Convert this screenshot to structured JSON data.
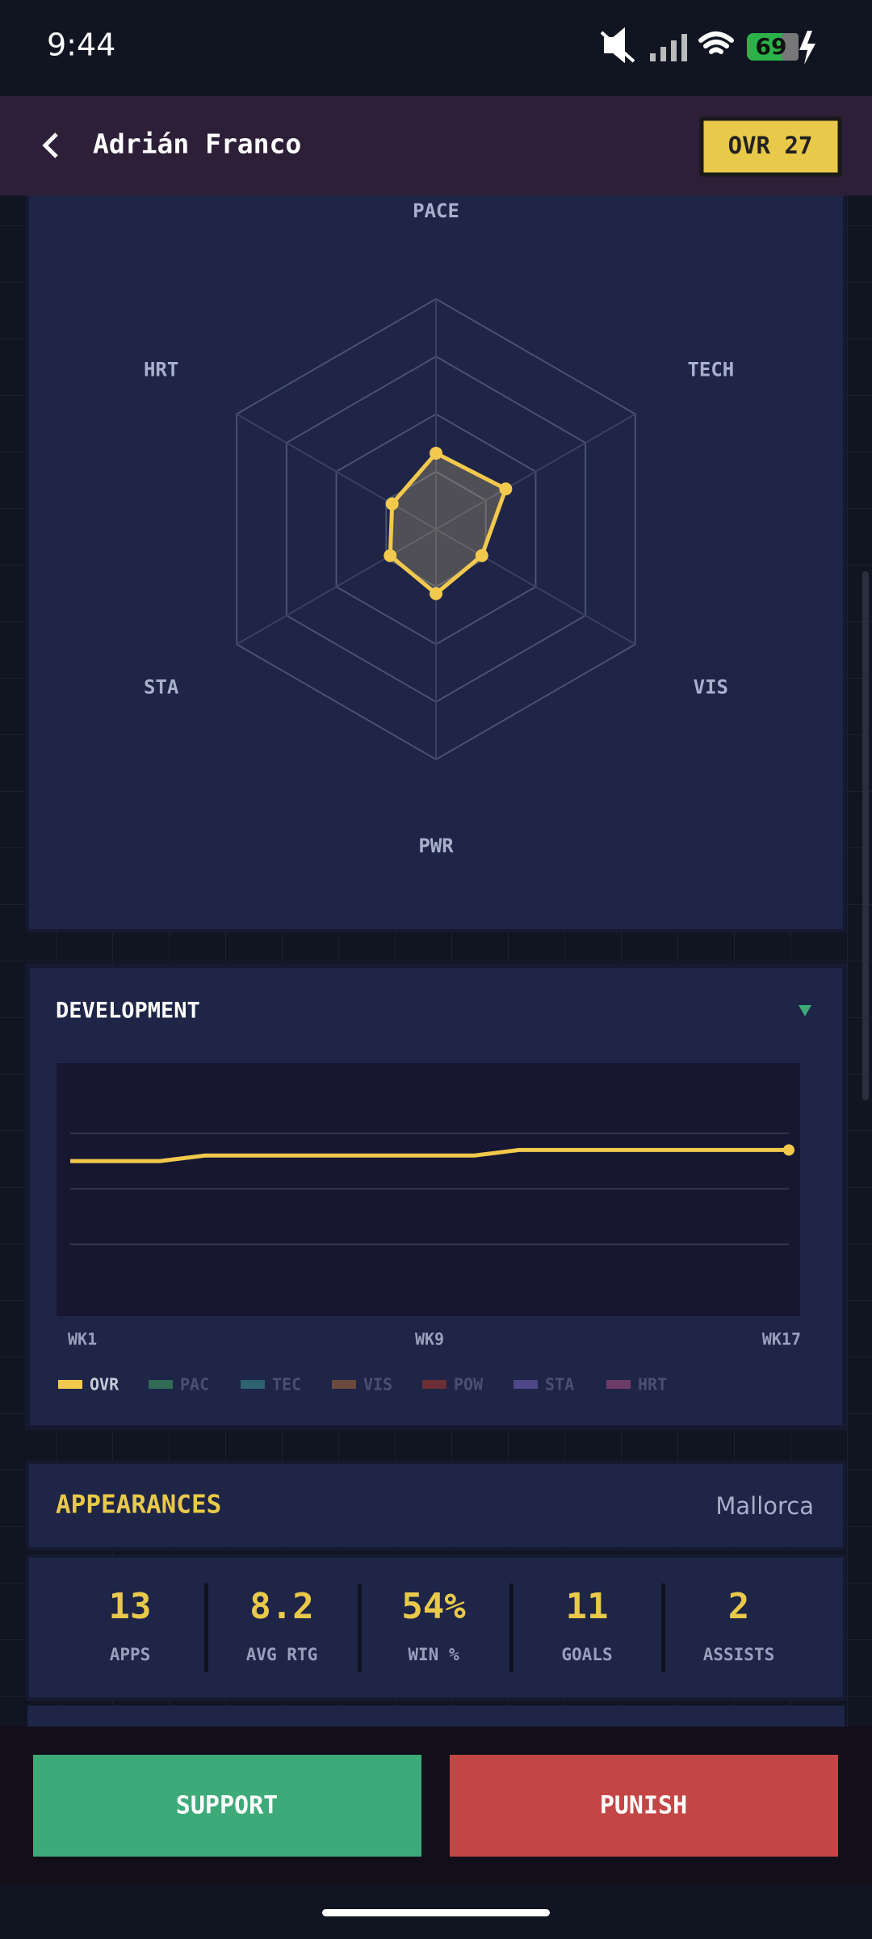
{
  "status_bar": {
    "time": "9:44",
    "battery": "69"
  },
  "header": {
    "title": "Adrián Franco",
    "badge": "OVR 27"
  },
  "radar": {
    "type": "radar",
    "axes": [
      "PACE",
      "TECH",
      "VIS",
      "PWR",
      "STA",
      "HRT"
    ],
    "values": [
      33,
      35,
      23,
      28,
      23,
      22
    ],
    "rlim": [
      0,
      100
    ],
    "rticks": [
      25,
      50,
      75,
      100
    ],
    "color": "#f2c94c"
  },
  "development": {
    "title": "DEVELOPMENT",
    "chart": {
      "type": "line",
      "categories": [
        "WK1",
        null,
        null,
        null,
        null,
        null,
        null,
        null,
        "WK9",
        null,
        null,
        null,
        null,
        null,
        null,
        null,
        "WK17"
      ],
      "series": [
        {
          "name": "OVR",
          "color": "#f2c94c",
          "values": [
            25,
            25,
            25,
            26,
            26,
            26,
            26,
            26,
            26,
            26,
            27,
            27,
            27,
            27,
            27,
            27,
            27
          ]
        },
        {
          "name": "PAC",
          "color": "#2f6b55"
        },
        {
          "name": "TEC",
          "color": "#2e6270"
        },
        {
          "name": "VIS",
          "color": "#6b4a3e"
        },
        {
          "name": "POW",
          "color": "#6b2f36"
        },
        {
          "name": "STA",
          "color": "#4f4888"
        },
        {
          "name": "HRT",
          "color": "#6d3c66"
        }
      ],
      "ylim": [
        0,
        40
      ],
      "yticks": [
        10,
        20,
        30
      ],
      "grid": true
    }
  },
  "appearances": {
    "title": "APPEARANCES",
    "club": "Mallorca",
    "stats": [
      {
        "value": "13",
        "label": "APPS"
      },
      {
        "value": "8.2",
        "label": "AVG RTG"
      },
      {
        "value": "54%",
        "label": "WIN %"
      },
      {
        "value": "11",
        "label": "GOALS"
      },
      {
        "value": "2",
        "label": "ASSISTS"
      }
    ]
  },
  "actions": [
    "SUPPORT",
    "PUNISH"
  ]
}
